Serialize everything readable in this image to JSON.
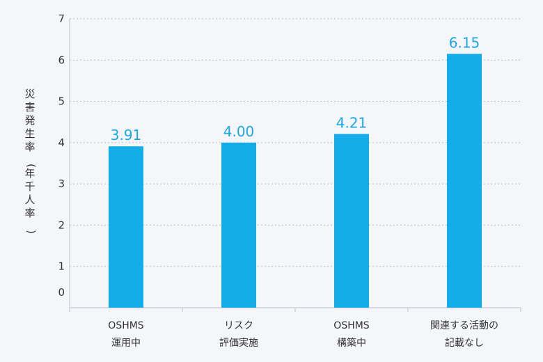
{
  "chart_data": {
    "type": "bar",
    "title": "",
    "xlabel": "",
    "ylabel": "災害発生率(年千人率)",
    "ylim": [
      0,
      7
    ],
    "yticks": [
      0,
      1,
      2,
      3,
      4,
      5,
      6,
      7
    ],
    "grid": "horizontal-dashed",
    "bar_color": "#15ade9",
    "label_color": "#1aa7e6",
    "categories": [
      [
        "OSHMS",
        "運用中"
      ],
      [
        "リスク",
        "評価実施"
      ],
      [
        "OSHMS",
        "構築中"
      ],
      [
        "関連する活動の",
        "記載なし"
      ]
    ],
    "values": [
      3.91,
      4.0,
      4.21,
      6.15
    ],
    "value_labels": [
      "3.91",
      "4.00",
      "4.21",
      "6.15"
    ]
  }
}
